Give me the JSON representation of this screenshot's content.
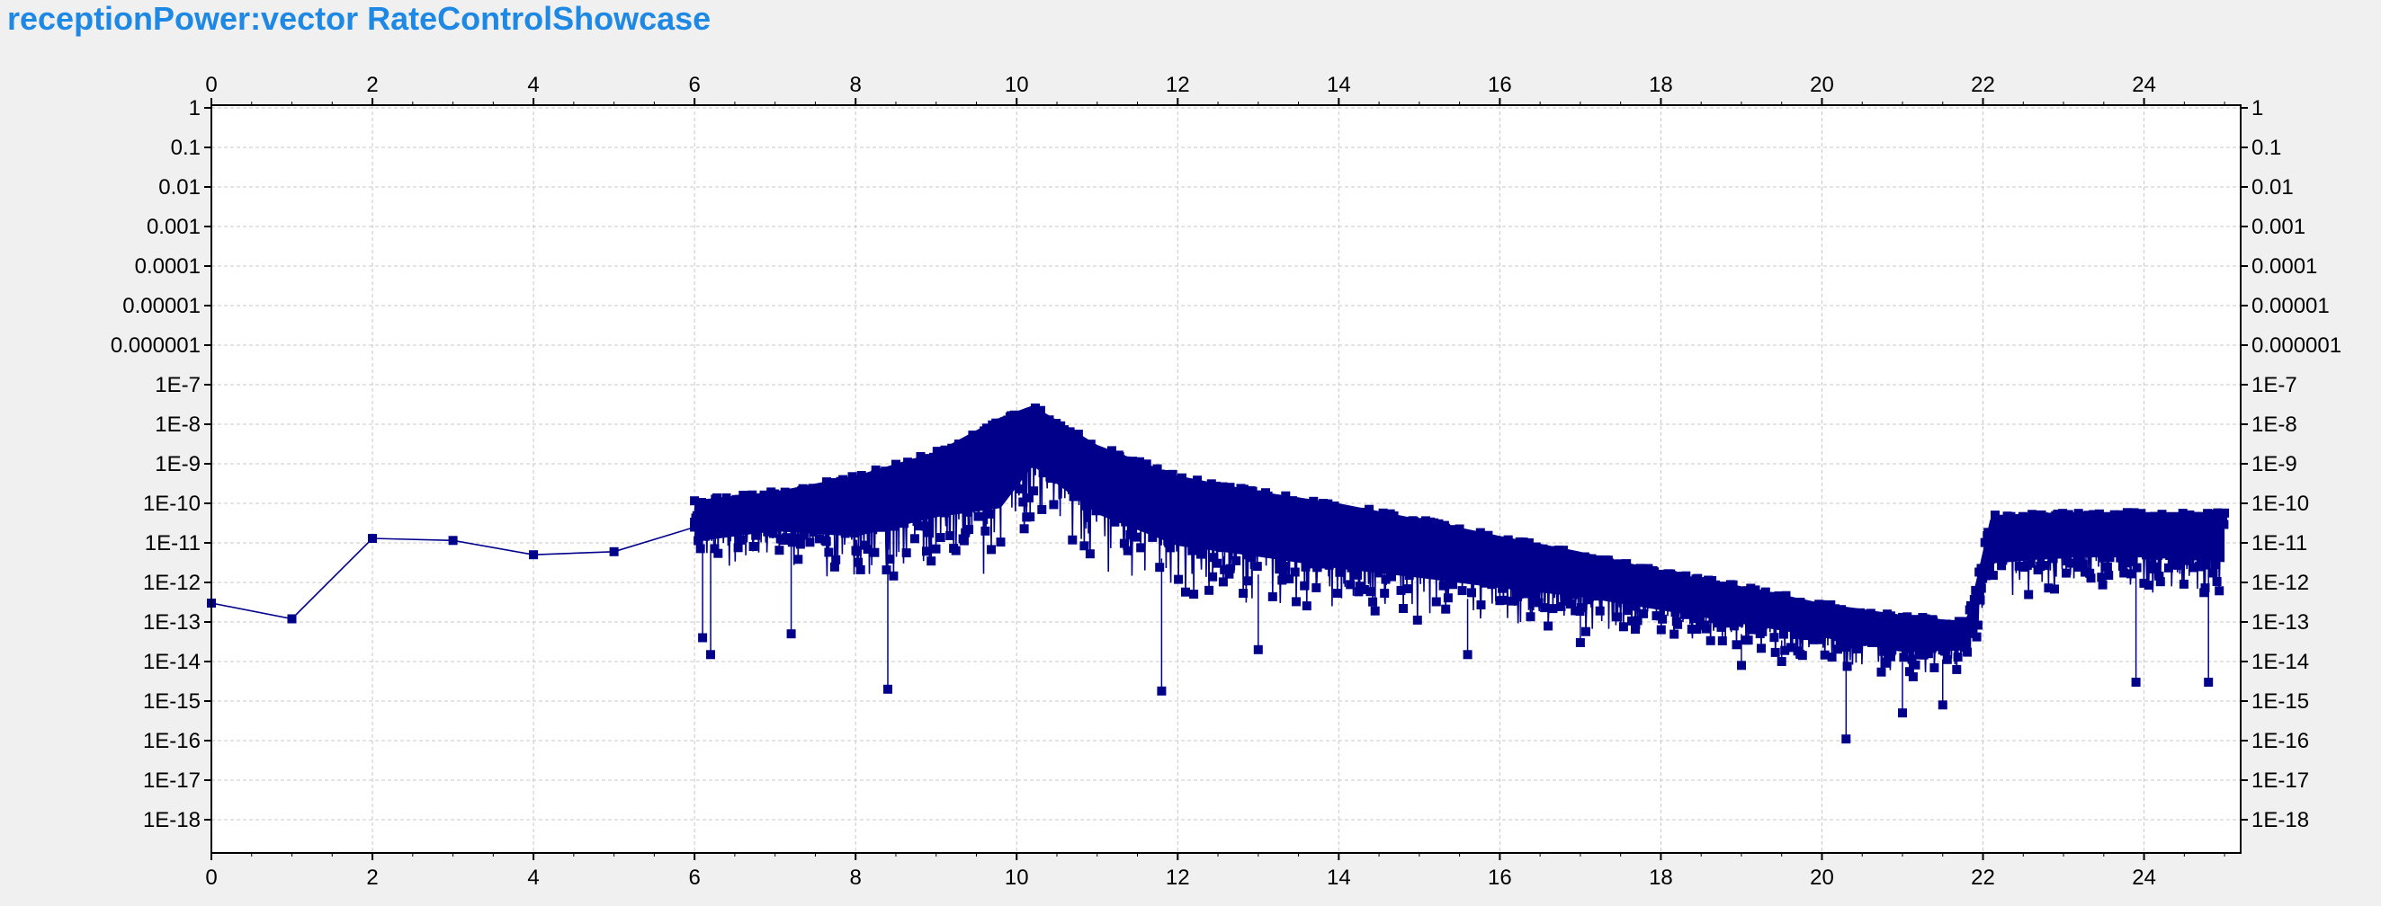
{
  "chart_data": {
    "type": "scatter",
    "title": "receptionPower:vector RateControlShowcase",
    "xlabel": "",
    "ylabel": "",
    "xlim": [
      0,
      25.2
    ],
    "ylim_exponent": [
      -19,
      0
    ],
    "y_scale": "log",
    "grid": true,
    "colors": {
      "series": "#00008b",
      "background": "#ffffff",
      "grid": "#c8c8c8"
    },
    "x_ticks": [
      "0",
      "2",
      "4",
      "6",
      "8",
      "10",
      "12",
      "14",
      "16",
      "18",
      "20",
      "22",
      "24"
    ],
    "x_tick_values": [
      0,
      2,
      4,
      6,
      8,
      10,
      12,
      14,
      16,
      18,
      20,
      22,
      24
    ],
    "y_ticks": [
      "1",
      "0.1",
      "0.01",
      "0.001",
      "0.0001",
      "0.00001",
      "0.000001",
      "1E-7",
      "1E-8",
      "1E-9",
      "1E-10",
      "1E-11",
      "1E-12",
      "1E-13",
      "1E-14",
      "1E-15",
      "1E-16",
      "1E-17",
      "1E-18"
    ],
    "y_tick_exponents": [
      0,
      -1,
      -2,
      -3,
      -4,
      -5,
      -6,
      -7,
      -8,
      -9,
      -10,
      -11,
      -12,
      -13,
      -14,
      -15,
      -16,
      -17,
      -18
    ],
    "series": [
      {
        "initial_points": [
          [
            0,
            3e-13
          ],
          [
            1,
            1.2e-13
          ],
          [
            2,
            1.3e-11
          ],
          [
            3,
            1.15e-11
          ],
          [
            4,
            5e-12
          ],
          [
            5,
            6e-12
          ],
          [
            6,
            2.5e-11
          ]
        ],
        "dense_envelope": [
          {
            "x": 6.0,
            "upper": 1.2e-10,
            "lower": 1.5e-12
          },
          {
            "x": 7.0,
            "upper": 2e-10,
            "lower": 3e-12
          },
          {
            "x": 8.0,
            "upper": 5e-10,
            "lower": 8e-13
          },
          {
            "x": 9.0,
            "upper": 2e-09,
            "lower": 2e-12
          },
          {
            "x": 9.8,
            "upper": 1.5e-08,
            "lower": 1e-12
          },
          {
            "x": 10.2,
            "upper": 3e-08,
            "lower": 5e-11
          },
          {
            "x": 11.0,
            "upper": 3e-09,
            "lower": 2e-12
          },
          {
            "x": 12.0,
            "upper": 5e-10,
            "lower": 3e-13
          },
          {
            "x": 13.0,
            "upper": 2e-10,
            "lower": 2e-13
          },
          {
            "x": 14.0,
            "upper": 1e-10,
            "lower": 1e-13
          },
          {
            "x": 15.0,
            "upper": 4e-11,
            "lower": 8e-14
          },
          {
            "x": 16.0,
            "upper": 1.5e-11,
            "lower": 6e-14
          },
          {
            "x": 17.0,
            "upper": 6e-12,
            "lower": 5e-14
          },
          {
            "x": 18.0,
            "upper": 2e-12,
            "lower": 3e-14
          },
          {
            "x": 19.0,
            "upper": 8e-13,
            "lower": 1.5e-14
          },
          {
            "x": 20.0,
            "upper": 3e-13,
            "lower": 8e-15
          },
          {
            "x": 21.0,
            "upper": 1.5e-13,
            "lower": 3e-15
          },
          {
            "x": 21.8,
            "upper": 1e-13,
            "lower": 5e-15
          },
          {
            "x": 22.1,
            "upper": 5e-11,
            "lower": 3e-13
          },
          {
            "x": 23.0,
            "upper": 6e-11,
            "lower": 5e-13
          },
          {
            "x": 24.0,
            "upper": 6e-11,
            "lower": 5e-13
          },
          {
            "x": 25.0,
            "upper": 6e-11,
            "lower": 3e-13
          }
        ],
        "outliers": [
          [
            8.4,
            2e-15
          ],
          [
            11.8,
            1.8e-15
          ],
          [
            20.3,
            1.1e-16
          ],
          [
            21.0,
            5e-16
          ],
          [
            21.5,
            8e-16
          ],
          [
            23.9,
            3e-15
          ],
          [
            24.8,
            3e-15
          ],
          [
            6.1,
            4e-14
          ],
          [
            6.2,
            1.5e-14
          ],
          [
            7.2,
            5e-14
          ],
          [
            13.0,
            2e-14
          ],
          [
            15.6,
            1.5e-14
          ],
          [
            17.0,
            3e-14
          ],
          [
            19.0,
            8e-15
          ],
          [
            19.5,
            1e-14
          ]
        ]
      }
    ]
  }
}
